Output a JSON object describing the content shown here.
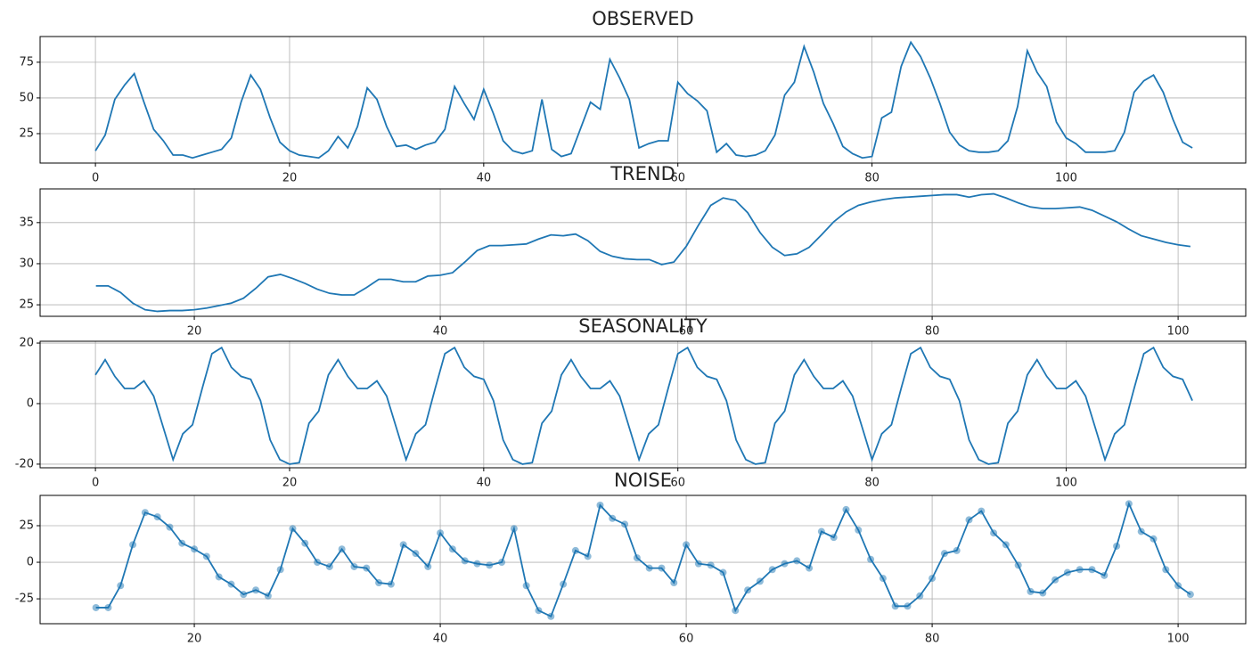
{
  "chart_data": [
    {
      "type": "line",
      "title": "OBSERVED",
      "color": "#1f77b4",
      "grid": true,
      "markers": false,
      "x": [
        0,
        1,
        2,
        3,
        4,
        5,
        6,
        7,
        8,
        9,
        10,
        11,
        12,
        13,
        14,
        15,
        16,
        17,
        18,
        19,
        20,
        21,
        22,
        23,
        24,
        25,
        26,
        27,
        28,
        29,
        30,
        31,
        32,
        33,
        34,
        35,
        36,
        37,
        38,
        39,
        40,
        41,
        42,
        43,
        44,
        45,
        46,
        47,
        48,
        49,
        50,
        51,
        52,
        53,
        54,
        55,
        56,
        57,
        58,
        59,
        60,
        61,
        62,
        63,
        64,
        65,
        66,
        67,
        68,
        69,
        70,
        71,
        72,
        73,
        74,
        75,
        76,
        77,
        78,
        79,
        80,
        81,
        82,
        83,
        84,
        85,
        86,
        87,
        88,
        89,
        90,
        91,
        92,
        93,
        94,
        95,
        96,
        97,
        98,
        99,
        100,
        101,
        102,
        103,
        104,
        105,
        106,
        107,
        108,
        109,
        110,
        111,
        112,
        113
      ],
      "values": [
        13,
        24,
        49,
        59,
        67,
        47,
        28,
        20,
        10,
        10,
        8,
        10,
        12,
        14,
        22,
        47,
        66,
        56,
        36,
        19,
        13,
        10,
        9,
        8,
        13,
        23,
        15,
        30,
        57,
        49,
        30,
        16,
        17,
        14,
        17,
        19,
        28,
        58,
        46,
        35,
        56,
        39,
        20,
        13,
        11,
        13,
        49,
        14,
        9,
        11,
        29,
        47,
        42,
        77,
        64,
        49,
        15,
        18,
        20,
        20,
        61,
        53,
        48,
        41,
        12,
        18,
        10,
        9,
        10,
        13,
        24,
        52,
        61,
        86,
        68,
        46,
        32,
        16,
        11,
        8,
        9,
        36,
        40,
        72,
        89,
        79,
        64,
        46,
        26,
        17,
        13,
        12,
        12,
        13,
        20,
        44,
        83,
        68,
        58,
        33,
        22,
        18,
        12,
        12,
        12,
        13,
        26,
        54,
        62,
        66,
        54,
        35,
        19,
        15
      ],
      "xlim": [
        -5.7,
        118.5
      ],
      "ylim": [
        4.4,
        93
      ],
      "xticks": [
        0,
        20,
        40,
        60,
        80,
        100
      ],
      "yticks": [
        25,
        50,
        75
      ]
    },
    {
      "type": "line",
      "title": "TREND",
      "color": "#1f77b4",
      "grid": true,
      "markers": false,
      "x": [
        12,
        13,
        14,
        15,
        16,
        17,
        18,
        19,
        20,
        21,
        22,
        23,
        24,
        25,
        26,
        27,
        28,
        29,
        30,
        31,
        32,
        33,
        34,
        35,
        36,
        37,
        38,
        39,
        40,
        41,
        42,
        43,
        44,
        45,
        46,
        47,
        48,
        49,
        50,
        51,
        52,
        53,
        54,
        55,
        56,
        57,
        58,
        59,
        60,
        61,
        62,
        63,
        64,
        65,
        66,
        67,
        68,
        69,
        70,
        71,
        72,
        73,
        74,
        75,
        76,
        77,
        78,
        79,
        80,
        81,
        82,
        83,
        84,
        85,
        86,
        87,
        88,
        89,
        90,
        91,
        92,
        93,
        94,
        95,
        96,
        97,
        98,
        99,
        100,
        101
      ],
      "values": [
        27.3,
        27.3,
        26.5,
        25.2,
        24.4,
        24.2,
        24.3,
        24.3,
        24.4,
        24.6,
        24.9,
        25.2,
        25.8,
        27.0,
        28.4,
        28.7,
        28.2,
        27.6,
        26.9,
        26.4,
        26.2,
        26.2,
        27.1,
        28.1,
        28.1,
        27.8,
        27.8,
        28.5,
        28.6,
        28.9,
        30.2,
        31.6,
        32.2,
        32.2,
        32.3,
        32.4,
        33.0,
        33.5,
        33.4,
        33.6,
        32.8,
        31.5,
        30.9,
        30.6,
        30.5,
        30.5,
        29.9,
        30.2,
        32.1,
        34.7,
        37.1,
        38.0,
        37.7,
        36.2,
        33.8,
        32.0,
        31.0,
        31.2,
        32.0,
        33.5,
        35.1,
        36.3,
        37.1,
        37.5,
        37.8,
        38.0,
        38.1,
        38.2,
        38.3,
        38.4,
        38.4,
        38.1,
        38.4,
        38.5,
        38.0,
        37.4,
        36.9,
        36.7,
        36.7,
        36.8,
        36.9,
        36.5,
        35.8,
        35.1,
        34.2,
        33.4,
        33.0,
        32.6,
        32.3,
        32.1
      ],
      "xlim": [
        7.46,
        105.5
      ],
      "ylim": [
        23.6,
        39.1
      ],
      "xticks": [
        20,
        40,
        60,
        80,
        100
      ],
      "yticks": [
        25,
        30,
        35
      ]
    },
    {
      "type": "line",
      "title": "SEASONALITY",
      "color": "#1f77b4",
      "grid": true,
      "markers": false,
      "x": [
        0,
        1,
        2,
        3,
        4,
        5,
        6,
        7,
        8,
        9,
        10,
        11,
        12,
        13,
        14,
        15,
        16,
        17,
        18,
        19,
        20,
        21,
        22,
        23,
        24,
        25,
        26,
        27,
        28,
        29,
        30,
        31,
        32,
        33,
        34,
        35,
        36,
        37,
        38,
        39,
        40,
        41,
        42,
        43,
        44,
        45,
        46,
        47,
        48,
        49,
        50,
        51,
        52,
        53,
        54,
        55,
        56,
        57,
        58,
        59,
        60,
        61,
        62,
        63,
        64,
        65,
        66,
        67,
        68,
        69,
        70,
        71,
        72,
        73,
        74,
        75,
        76,
        77,
        78,
        79,
        80,
        81,
        82,
        83,
        84,
        85,
        86,
        87,
        88,
        89,
        90,
        91,
        92,
        93,
        94,
        95,
        96,
        97,
        98,
        99,
        100,
        101,
        102,
        103,
        104,
        105,
        106,
        107,
        108,
        109,
        110,
        111,
        112,
        113
      ],
      "values": [
        9.5,
        14.5,
        9,
        5,
        5,
        7.5,
        2.5,
        -8,
        -18.5,
        -10,
        -7,
        5,
        16.5,
        18.5,
        12,
        9,
        8,
        1,
        -12,
        -18.5,
        -20,
        -19.5,
        -6.5,
        -2.5,
        9.5,
        14.5,
        9,
        5,
        5,
        7.5,
        2.5,
        -8,
        -18.5,
        -10,
        -7,
        5,
        16.5,
        18.5,
        12,
        9,
        8,
        1,
        -12,
        -18.5,
        -20,
        -19.5,
        -6.5,
        -2.5,
        9.5,
        14.5,
        9,
        5,
        5,
        7.5,
        2.5,
        -8,
        -18.5,
        -10,
        -7,
        5,
        16.5,
        18.5,
        12,
        9,
        8,
        1,
        -12,
        -18.5,
        -20,
        -19.5,
        -6.5,
        -2.5,
        9.5,
        14.5,
        9,
        5,
        5,
        7.5,
        2.5,
        -8,
        -18.5,
        -10,
        -7,
        5,
        16.5,
        18.5,
        12,
        9,
        8,
        1,
        -12,
        -18.5,
        -20,
        -19.5,
        -6.5,
        -2.5,
        9.5,
        14.5,
        9,
        5,
        5,
        7.5,
        2.5,
        -8,
        -18.5,
        -10,
        -7,
        5,
        16.5,
        18.5,
        12,
        9,
        8,
        1
      ],
      "xlim": [
        -5.7,
        118.5
      ],
      "ylim": [
        -21.2,
        20.6
      ],
      "xticks": [
        0,
        20,
        40,
        60,
        80,
        100
      ],
      "yticks": [
        -20,
        0,
        20
      ]
    },
    {
      "type": "line",
      "title": "NOISE",
      "color": "#1f77b4",
      "grid": true,
      "markers": true,
      "x": [
        12,
        13,
        14,
        15,
        16,
        17,
        18,
        19,
        20,
        21,
        22,
        23,
        24,
        25,
        26,
        27,
        28,
        29,
        30,
        31,
        32,
        33,
        34,
        35,
        36,
        37,
        38,
        39,
        40,
        41,
        42,
        43,
        44,
        45,
        46,
        47,
        48,
        49,
        50,
        51,
        52,
        53,
        54,
        55,
        56,
        57,
        58,
        59,
        60,
        61,
        62,
        63,
        64,
        65,
        66,
        67,
        68,
        69,
        70,
        71,
        72,
        73,
        74,
        75,
        76,
        77,
        78,
        79,
        80,
        81,
        82,
        83,
        84,
        85,
        86,
        87,
        88,
        89,
        90,
        91,
        92,
        93,
        94,
        95,
        96,
        97,
        98,
        99,
        100,
        101
      ],
      "values": [
        -31,
        -31,
        -16,
        12,
        34,
        31,
        24,
        13,
        9,
        4,
        -10,
        -15,
        -22,
        -19,
        -23,
        -5,
        23,
        13,
        0,
        -3,
        9,
        -3,
        -4,
        -14,
        -15,
        12,
        6,
        -3,
        20,
        9,
        1,
        -1,
        -2,
        0,
        23,
        -16,
        -33,
        -37,
        -15,
        8,
        4,
        39,
        30,
        26,
        3,
        -4,
        -4,
        -14,
        12,
        -1,
        -2,
        -7,
        -33,
        -19,
        -13,
        -5,
        -1,
        1,
        -4,
        21,
        17,
        36,
        22,
        2,
        -11,
        -30,
        -30,
        -23,
        -11,
        6,
        8,
        29,
        35,
        20,
        12,
        -2,
        -20,
        -21,
        -12,
        -7,
        -5,
        -5,
        -9,
        11,
        40,
        21,
        16,
        -5,
        -16,
        -22
      ],
      "xlim": [
        7.46,
        105.5
      ],
      "ylim": [
        -42,
        45.7
      ],
      "xticks": [
        20,
        40,
        60,
        80,
        100
      ],
      "yticks": [
        -25,
        0,
        25
      ]
    }
  ]
}
